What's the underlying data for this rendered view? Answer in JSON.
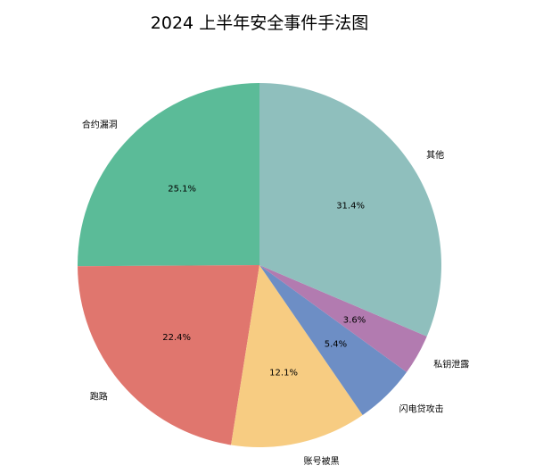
{
  "chart_data": {
    "type": "pie",
    "title": "2024 上半年安全事件手法图",
    "start_angle_deg": 90,
    "direction": "counterclockwise",
    "slices": [
      {
        "label": "合约漏洞",
        "value": 25.1,
        "pct_label": "25.1%",
        "color": "#5bbb98"
      },
      {
        "label": "跑路",
        "value": 22.4,
        "pct_label": "22.4%",
        "color": "#e0766e"
      },
      {
        "label": "账号被黑",
        "value": 12.1,
        "pct_label": "12.1%",
        "color": "#f7cc82"
      },
      {
        "label": "闪电贷攻击",
        "value": 5.4,
        "pct_label": "5.4%",
        "color": "#6d8ec5"
      },
      {
        "label": "私钥泄露",
        "value": 3.6,
        "pct_label": "3.6%",
        "color": "#b27bb0"
      },
      {
        "label": "其他",
        "value": 31.4,
        "pct_label": "31.4%",
        "color": "#8fbfbd"
      }
    ]
  }
}
